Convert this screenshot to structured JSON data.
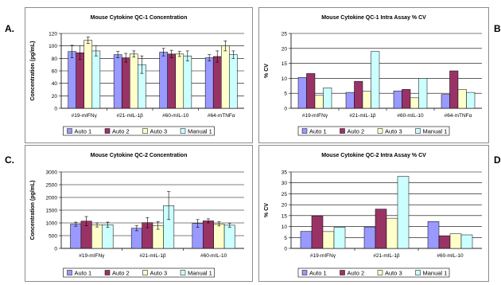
{
  "panel_letters": [
    "A.",
    "B",
    "C.",
    "D"
  ],
  "legend_labels": [
    "Auto 1",
    "Auto 2",
    "Auto 3",
    "Manual 1"
  ],
  "colors": {
    "Auto 1": "#9999ff",
    "Auto 2": "#993366",
    "Auto 3": "#ffffcc",
    "Manual 1": "#ccffff"
  },
  "chart_data": [
    {
      "type": "bar",
      "title": "Mouse Cytokine QC-1 Concentration",
      "ylabel": "Concentration (pg/mL)",
      "ylim": [
        0,
        120
      ],
      "yticks": [
        0,
        20,
        40,
        60,
        80,
        100,
        120
      ],
      "categories": [
        "#19-mIFNγ",
        "#21-mIL-1β",
        "#60-mIL-10",
        "#64-mTNFα"
      ],
      "series": [
        {
          "name": "Auto 1",
          "values": [
            91,
            86,
            90,
            81
          ],
          "errors": [
            10,
            5,
            6,
            5
          ]
        },
        {
          "name": "Auto 2",
          "values": [
            89,
            81,
            87,
            83
          ],
          "errors": [
            11,
            7,
            6,
            9
          ]
        },
        {
          "name": "Auto 3",
          "values": [
            109,
            87,
            87,
            100
          ],
          "errors": [
            5,
            5,
            4,
            8
          ]
        },
        {
          "name": "Manual 1",
          "values": [
            92,
            70,
            84,
            86
          ],
          "errors": [
            8,
            14,
            8,
            6
          ]
        }
      ],
      "legend": "bottom"
    },
    {
      "type": "bar",
      "title": "Mouse Cytokine QC-1 Intra Assay % CV",
      "ylabel": "% CV",
      "ylim": [
        0,
        25
      ],
      "yticks": [
        0,
        5,
        10,
        15,
        20,
        25
      ],
      "categories": [
        "#19-mIFNγ",
        "#21-mIL-1β",
        "#60-mIL-10",
        "#64-mTNFα"
      ],
      "series": [
        {
          "name": "Auto 1",
          "values": [
            10.3,
            5.3,
            5.8,
            4.6
          ]
        },
        {
          "name": "Auto 2",
          "values": [
            11.6,
            9,
            6.3,
            12.5
          ]
        },
        {
          "name": "Auto 3",
          "values": [
            4.3,
            5.7,
            3.5,
            6.3
          ]
        },
        {
          "name": "Manual 1",
          "values": [
            6.8,
            19,
            10,
            5.3
          ]
        }
      ],
      "legend": "bottom"
    },
    {
      "type": "bar",
      "title": "Mouse Cytokine QC-2 Concentration",
      "ylabel": "Concentration (pg/mL)",
      "ylim": [
        0,
        3000
      ],
      "yticks": [
        0,
        500,
        1000,
        1500,
        2000,
        2500,
        3000
      ],
      "categories": [
        "#19-mIFNγ",
        "#21-mIL-1β",
        "#60-mIL-10"
      ],
      "series": [
        {
          "name": "Auto 1",
          "values": [
            950,
            790,
            980
          ],
          "errors": [
            80,
            100,
            150
          ]
        },
        {
          "name": "Auto 2",
          "values": [
            1070,
            1010,
            1080
          ],
          "errors": [
            180,
            200,
            80
          ]
        },
        {
          "name": "Auto 3",
          "values": [
            920,
            900,
            960
          ],
          "errors": [
            80,
            150,
            80
          ]
        },
        {
          "name": "Manual 1",
          "values": [
            930,
            1680,
            910
          ],
          "errors": [
            100,
            550,
            80
          ]
        }
      ],
      "legend": "bottom"
    },
    {
      "type": "bar",
      "title": "Mouse Cytokine QC-2 Intra Assay % CV",
      "ylabel": "% CV",
      "ylim": [
        0,
        35
      ],
      "yticks": [
        0,
        5,
        10,
        15,
        20,
        25,
        30,
        35
      ],
      "categories": [
        "#19-mIFNγ",
        "#21-mIL-1β",
        "#60-mIL-10"
      ],
      "series": [
        {
          "name": "Auto 1",
          "values": [
            7.8,
            9.8,
            12.3
          ]
        },
        {
          "name": "Auto 2",
          "values": [
            14.8,
            18,
            5.8
          ]
        },
        {
          "name": "Auto 3",
          "values": [
            7.7,
            13.8,
            6.7
          ]
        },
        {
          "name": "Manual 1",
          "values": [
            9.7,
            33,
            6.2
          ]
        }
      ],
      "legend": "bottom"
    }
  ]
}
